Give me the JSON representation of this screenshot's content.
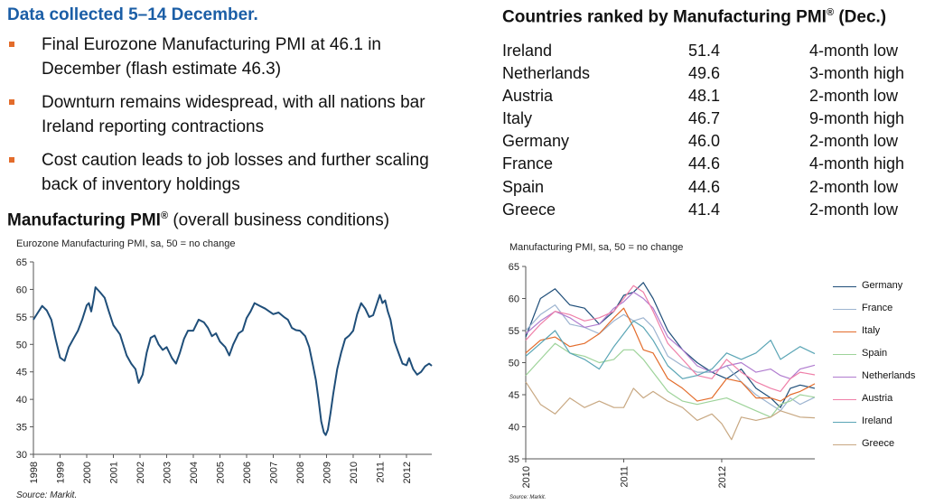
{
  "heading": "Data collected 5–14 December.",
  "bullets": [
    "Final Eurozone Manufacturing PMI at 46.1 in December (flash estimate 46.3)",
    "Downturn remains widespread, with all nations bar Ireland reporting contractions",
    "Cost caution leads to job losses and further scaling back of inventory holdings"
  ],
  "ranking": {
    "title": "Countries ranked by Manufacturing PMI",
    "title_sup": "®",
    "title_suffix": " (Dec.)",
    "rows": [
      {
        "country": "Ireland",
        "value": "51.4",
        "note": "4-month low"
      },
      {
        "country": "Netherlands",
        "value": "49.6",
        "note": "3-month high"
      },
      {
        "country": "Austria",
        "value": "48.1",
        "note": "2-month low"
      },
      {
        "country": "Italy",
        "value": "46.7",
        "note": "9-month high"
      },
      {
        "country": "Germany",
        "value": "46.0",
        "note": "2-month low"
      },
      {
        "country": "France",
        "value": "44.6",
        "note": "4-month high"
      },
      {
        "country": "Spain",
        "value": "44.6",
        "note": "2-month low"
      },
      {
        "country": "Greece",
        "value": "41.4",
        "note": "2-month low"
      }
    ]
  },
  "left_chart_heading": {
    "bold": "Manufacturing PMI",
    "sup": "®",
    "normal": " (overall business conditions)"
  },
  "source": "Source: Markit.",
  "source_small": "Source: Markit.",
  "chart_data": [
    {
      "type": "line",
      "title": "Eurozone Manufacturing PMI, sa, 50 = no change",
      "ylim": [
        30,
        65
      ],
      "yticks": [
        30,
        35,
        40,
        45,
        50,
        55,
        60,
        65
      ],
      "xticks": [
        "1998",
        "1999",
        "2000",
        "2001",
        "2002",
        "2003",
        "2004",
        "2005",
        "2006",
        "2007",
        "2008",
        "2009",
        "2010",
        "2011",
        "2012"
      ],
      "xlim": [
        1998,
        2012.95
      ],
      "grid": false,
      "color": "#1f4e79",
      "series": [
        {
          "x": [
            1998.0,
            1998.17,
            1998.33,
            1998.5,
            1998.67,
            1998.83,
            1999.0,
            1999.17,
            1999.33,
            1999.5,
            1999.67,
            1999.83,
            2000.0,
            2000.08,
            2000.17,
            2000.25,
            2000.33,
            2000.5,
            2000.67,
            2000.83,
            2001.0,
            2001.25,
            2001.5,
            2001.67,
            2001.83,
            2001.95,
            2002.1,
            2002.25,
            2002.4,
            2002.55,
            2002.7,
            2002.85,
            2003.0,
            2003.2,
            2003.35,
            2003.5,
            2003.65,
            2003.8,
            2004.0,
            2004.2,
            2004.4,
            2004.55,
            2004.7,
            2004.85,
            2005.0,
            2005.2,
            2005.35,
            2005.5,
            2005.7,
            2005.85,
            2006.0,
            2006.15,
            2006.3,
            2006.5,
            2006.7,
            2006.85,
            2007.0,
            2007.2,
            2007.4,
            2007.55,
            2007.7,
            2007.85,
            2008.0,
            2008.2,
            2008.35,
            2008.5,
            2008.6,
            2008.7,
            2008.8,
            2008.9,
            2008.97,
            2009.05,
            2009.15,
            2009.25,
            2009.4,
            2009.55,
            2009.7,
            2009.85,
            2010.0,
            2010.15,
            2010.3,
            2010.45,
            2010.6,
            2010.75,
            2010.9,
            2011.0,
            2011.1,
            2011.2,
            2011.3,
            2011.4,
            2011.55,
            2011.7,
            2011.85,
            2012.0,
            2012.1,
            2012.25,
            2012.4,
            2012.55,
            2012.7,
            2012.85,
            2012.95
          ],
          "y": [
            54.5,
            55.8,
            57.0,
            56.2,
            54.5,
            51.0,
            47.6,
            47.0,
            49.5,
            51.0,
            52.5,
            54.5,
            57.1,
            57.5,
            56.0,
            58.0,
            60.4,
            59.5,
            58.5,
            56.0,
            53.5,
            51.8,
            48.0,
            46.5,
            45.5,
            43.0,
            44.5,
            48.5,
            51.2,
            51.6,
            50.0,
            49.0,
            49.5,
            47.5,
            46.5,
            48.5,
            51.0,
            52.5,
            52.5,
            54.5,
            54.0,
            53.0,
            51.5,
            52.0,
            50.5,
            49.5,
            48.0,
            50.0,
            52.0,
            52.5,
            54.8,
            56.0,
            57.5,
            57.0,
            56.5,
            56.0,
            55.5,
            55.8,
            55.0,
            54.5,
            53.0,
            52.6,
            52.5,
            51.5,
            49.5,
            46.0,
            43.5,
            40.0,
            36.0,
            34.0,
            33.5,
            34.5,
            37.5,
            41.0,
            45.5,
            48.5,
            51.0,
            51.6,
            52.5,
            55.5,
            57.5,
            56.5,
            55.0,
            55.3,
            57.5,
            59.0,
            57.5,
            58.0,
            56.0,
            54.5,
            50.5,
            48.5,
            46.5,
            46.2,
            47.5,
            45.5,
            44.5,
            45.0,
            46.0,
            46.5,
            46.1
          ]
        }
      ]
    },
    {
      "type": "line",
      "title": "Manufacturing PMI, sa, 50 = no change",
      "ylim": [
        35,
        65
      ],
      "yticks": [
        35,
        40,
        45,
        50,
        55,
        60,
        65
      ],
      "xticks": [
        "2010",
        "2011",
        "2012"
      ],
      "xlim": [
        2010,
        2012.95
      ],
      "grid": false,
      "series": [
        {
          "name": "Germany",
          "color": "#1f4e79",
          "x": [
            2010.0,
            2010.15,
            2010.3,
            2010.45,
            2010.6,
            2010.75,
            2010.9,
            2011.0,
            2011.1,
            2011.2,
            2011.3,
            2011.45,
            2011.6,
            2011.75,
            2011.9,
            2012.05,
            2012.2,
            2012.35,
            2012.5,
            2012.6,
            2012.7,
            2012.8,
            2012.95
          ],
          "y": [
            54.0,
            60.0,
            61.5,
            59.0,
            58.5,
            56.0,
            58.0,
            60.5,
            61.0,
            62.5,
            60.0,
            55.0,
            52.0,
            50.0,
            48.5,
            47.5,
            49.0,
            46.0,
            44.5,
            43.0,
            46.0,
            46.5,
            46.0
          ]
        },
        {
          "name": "France",
          "color": "#9db4d0",
          "x": [
            2010.0,
            2010.15,
            2010.3,
            2010.45,
            2010.6,
            2010.75,
            2010.9,
            2011.0,
            2011.1,
            2011.2,
            2011.3,
            2011.45,
            2011.6,
            2011.75,
            2011.9,
            2012.05,
            2012.2,
            2012.35,
            2012.5,
            2012.6,
            2012.7,
            2012.8,
            2012.95
          ],
          "y": [
            55.0,
            57.5,
            59.0,
            56.0,
            55.5,
            54.5,
            56.5,
            57.5,
            56.5,
            57.0,
            55.5,
            51.0,
            49.5,
            48.5,
            48.5,
            49.5,
            47.0,
            45.0,
            43.5,
            42.5,
            44.5,
            43.5,
            44.6
          ]
        },
        {
          "name": "Italy",
          "color": "#e36c2b",
          "x": [
            2010.0,
            2010.15,
            2010.3,
            2010.45,
            2010.6,
            2010.75,
            2010.9,
            2011.0,
            2011.1,
            2011.2,
            2011.3,
            2011.45,
            2011.6,
            2011.75,
            2011.9,
            2012.05,
            2012.2,
            2012.35,
            2012.5,
            2012.6,
            2012.7,
            2012.8,
            2012.95
          ],
          "y": [
            51.5,
            53.5,
            54.0,
            52.5,
            53.0,
            54.5,
            57.0,
            58.5,
            55.5,
            52.0,
            51.5,
            47.5,
            46.0,
            44.0,
            44.5,
            47.5,
            47.0,
            44.5,
            44.5,
            44.0,
            45.0,
            45.5,
            46.7
          ]
        },
        {
          "name": "Spain",
          "color": "#9ed39a",
          "x": [
            2010.0,
            2010.15,
            2010.3,
            2010.45,
            2010.6,
            2010.75,
            2010.9,
            2011.0,
            2011.1,
            2011.2,
            2011.3,
            2011.45,
            2011.6,
            2011.75,
            2011.9,
            2012.05,
            2012.2,
            2012.35,
            2012.5,
            2012.6,
            2012.7,
            2012.8,
            2012.95
          ],
          "y": [
            48.0,
            50.5,
            53.0,
            51.5,
            51.0,
            50.0,
            50.5,
            52.0,
            52.0,
            50.5,
            48.5,
            45.5,
            44.0,
            43.5,
            44.0,
            44.5,
            43.5,
            42.5,
            41.5,
            43.5,
            44.0,
            45.0,
            44.6
          ]
        },
        {
          "name": "Netherlands",
          "color": "#b07ccf",
          "x": [
            2010.0,
            2010.15,
            2010.3,
            2010.45,
            2010.6,
            2010.75,
            2010.9,
            2011.0,
            2011.1,
            2011.2,
            2011.3,
            2011.45,
            2011.6,
            2011.75,
            2011.9,
            2012.05,
            2012.2,
            2012.35,
            2012.5,
            2012.6,
            2012.7,
            2012.8,
            2012.95
          ],
          "y": [
            54.5,
            56.5,
            58.0,
            57.0,
            55.5,
            56.0,
            58.5,
            59.5,
            61.0,
            60.0,
            58.5,
            54.0,
            52.0,
            49.5,
            48.5,
            49.5,
            50.0,
            48.5,
            49.0,
            48.0,
            47.5,
            49.0,
            49.6
          ]
        },
        {
          "name": "Austria",
          "color": "#ef7fa8",
          "x": [
            2010.0,
            2010.15,
            2010.3,
            2010.45,
            2010.6,
            2010.75,
            2010.9,
            2011.0,
            2011.1,
            2011.2,
            2011.3,
            2011.45,
            2011.6,
            2011.75,
            2011.9,
            2012.05,
            2012.2,
            2012.35,
            2012.5,
            2012.6,
            2012.7,
            2012.8,
            2012.95
          ],
          "y": [
            53.5,
            56.0,
            58.0,
            57.5,
            56.5,
            57.0,
            58.0,
            60.0,
            62.0,
            61.0,
            58.0,
            53.0,
            50.5,
            48.0,
            47.5,
            50.5,
            48.5,
            47.0,
            46.0,
            45.5,
            47.5,
            48.5,
            48.1
          ]
        },
        {
          "name": "Ireland",
          "color": "#5aa5b5",
          "x": [
            2010.0,
            2010.15,
            2010.3,
            2010.45,
            2010.6,
            2010.75,
            2010.9,
            2011.0,
            2011.1,
            2011.2,
            2011.3,
            2011.45,
            2011.6,
            2011.75,
            2011.9,
            2012.05,
            2012.2,
            2012.35,
            2012.5,
            2012.6,
            2012.7,
            2012.8,
            2012.95
          ],
          "y": [
            51.0,
            53.0,
            55.0,
            51.5,
            50.5,
            49.0,
            52.5,
            54.5,
            56.5,
            55.5,
            53.5,
            49.5,
            47.5,
            48.0,
            49.0,
            51.5,
            50.5,
            51.5,
            53.5,
            50.5,
            51.5,
            52.5,
            51.4
          ]
        },
        {
          "name": "Greece",
          "color": "#c8a882",
          "x": [
            2010.0,
            2010.15,
            2010.3,
            2010.45,
            2010.6,
            2010.75,
            2010.9,
            2011.0,
            2011.1,
            2011.2,
            2011.3,
            2011.45,
            2011.6,
            2011.75,
            2011.9,
            2012.0,
            2012.1,
            2012.2,
            2012.35,
            2012.5,
            2012.6,
            2012.7,
            2012.8,
            2012.95
          ],
          "y": [
            47.0,
            43.5,
            42.0,
            44.5,
            43.0,
            44.0,
            43.0,
            43.0,
            46.0,
            44.5,
            45.5,
            44.0,
            43.0,
            41.0,
            42.0,
            40.5,
            38.0,
            41.5,
            41.0,
            41.5,
            42.5,
            42.0,
            41.5,
            41.4
          ]
        }
      ]
    }
  ]
}
